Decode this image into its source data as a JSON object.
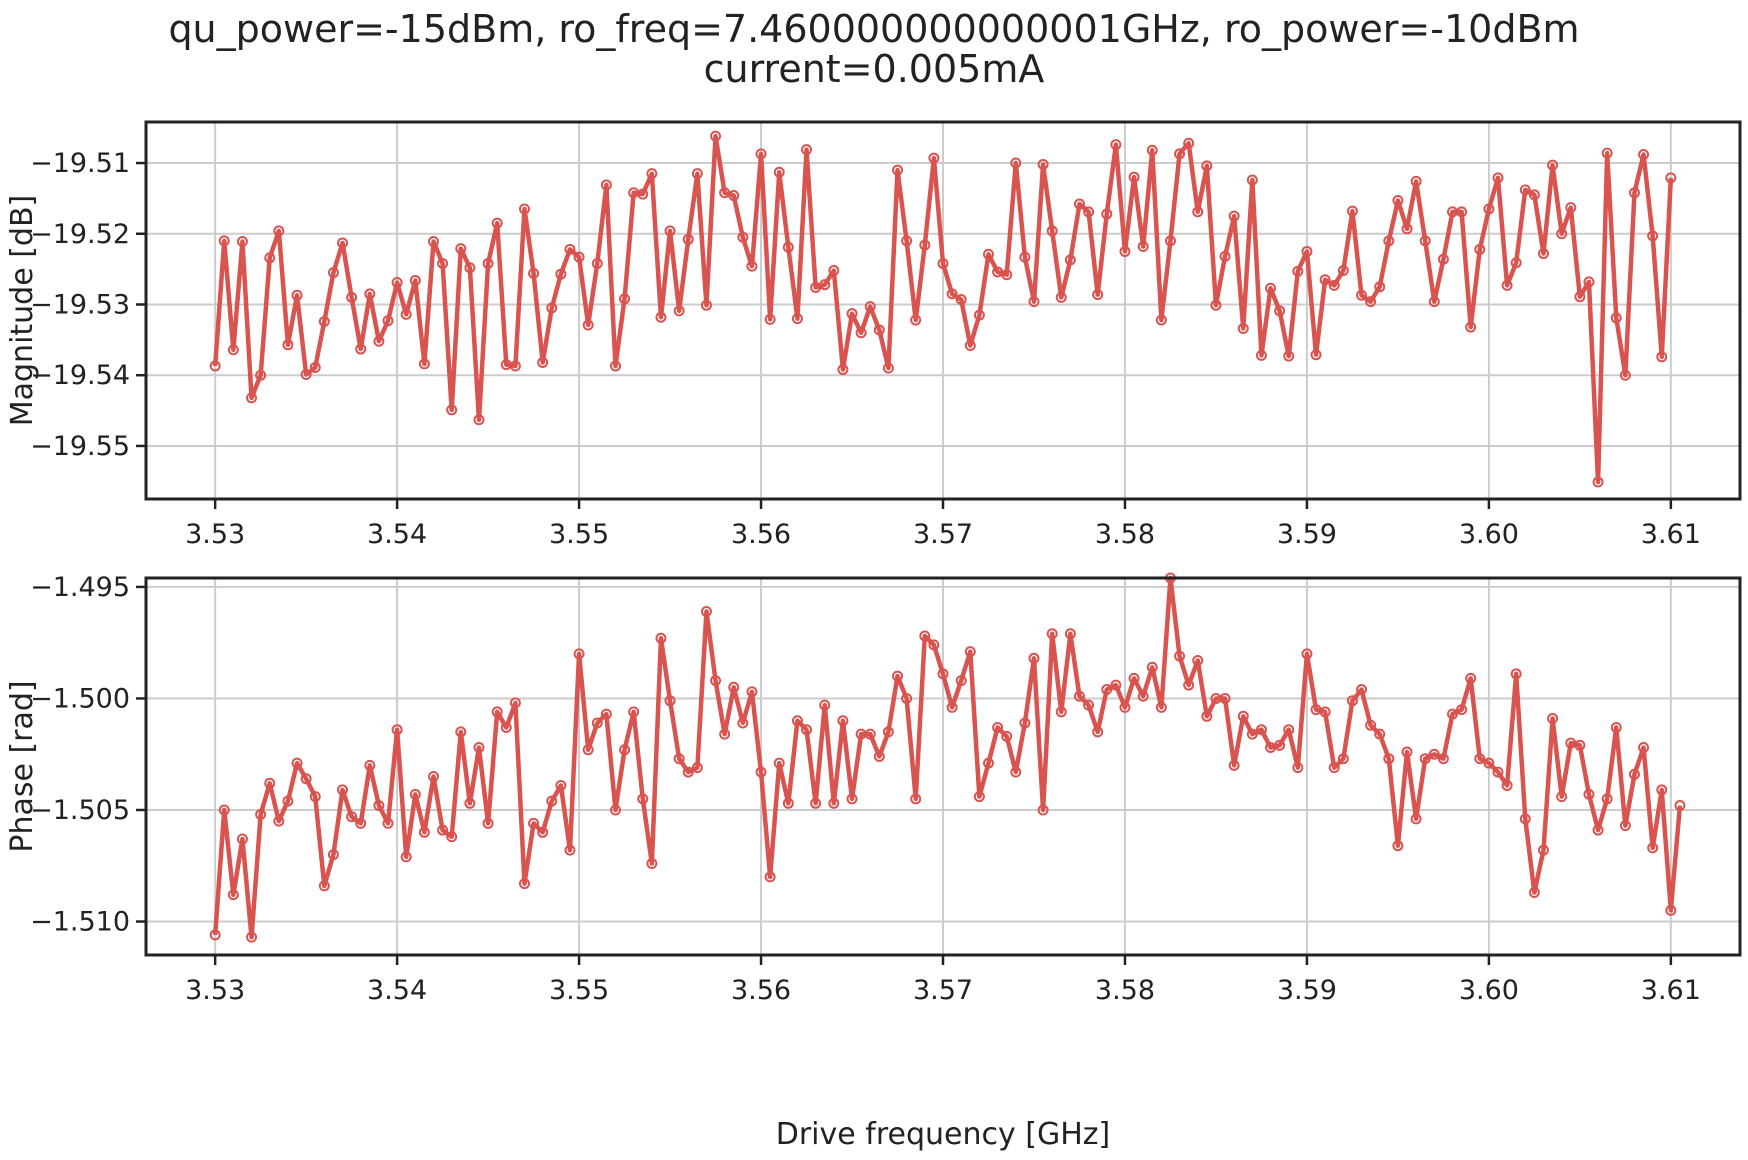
{
  "figure": {
    "title_line1": "qu_power=-15dBm, ro_freq=7.460000000000001GHz, ro_power=-10dBm",
    "title_line2": "current=0.005mA",
    "series_color": "#d9534f"
  },
  "chart_data": [
    {
      "type": "line",
      "ylabel": "Magnitude [dB]",
      "xlabel": "",
      "xlim": [
        3.5262,
        3.6138
      ],
      "ylim": [
        -19.5575,
        -19.5042
      ],
      "xticks": [
        3.53,
        3.54,
        3.55,
        3.56,
        3.57,
        3.58,
        3.59,
        3.6,
        3.61
      ],
      "xtick_labels": [
        "3.53",
        "3.54",
        "3.55",
        "3.56",
        "3.57",
        "3.58",
        "3.59",
        "3.60",
        "3.61"
      ],
      "yticks": [
        -19.55,
        -19.54,
        -19.53,
        -19.52,
        -19.51
      ],
      "ytick_labels": [
        "−19.55",
        "−19.54",
        "−19.53",
        "−19.52",
        "−19.51"
      ],
      "grid": true,
      "marker": "open-circle",
      "x_start": 3.53,
      "x_step": 0.0005,
      "values": [
        -19.5387,
        -19.521,
        -19.5364,
        -19.5211,
        -19.5432,
        -19.54,
        -19.5234,
        -19.5196,
        -19.5357,
        -19.5287,
        -19.5399,
        -19.5389,
        -19.5324,
        -19.5255,
        -19.5213,
        -19.529,
        -19.5363,
        -19.5285,
        -19.5352,
        -19.5323,
        -19.5269,
        -19.5314,
        -19.5266,
        -19.5384,
        -19.5211,
        -19.5242,
        -19.5449,
        -19.5221,
        -19.5248,
        -19.5463,
        -19.5242,
        -19.5185,
        -19.5385,
        -19.5387,
        -19.5165,
        -19.5256,
        -19.5382,
        -19.5305,
        -19.5257,
        -19.5222,
        -19.5233,
        -19.5329,
        -19.5242,
        -19.5131,
        -19.5387,
        -19.5292,
        -19.5142,
        -19.5144,
        -19.5115,
        -19.5318,
        -19.5196,
        -19.5309,
        -19.5208,
        -19.5115,
        -19.5301,
        -19.5062,
        -19.5142,
        -19.5146,
        -19.5205,
        -19.5246,
        -19.5087,
        -19.5321,
        -19.5113,
        -19.5219,
        -19.532,
        -19.5081,
        -19.5276,
        -19.5272,
        -19.5252,
        -19.5392,
        -19.5313,
        -19.534,
        -19.5303,
        -19.5336,
        -19.539,
        -19.511,
        -19.521,
        -19.5322,
        -19.5216,
        -19.5093,
        -19.5242,
        -19.5285,
        -19.5293,
        -19.5358,
        -19.5315,
        -19.5229,
        -19.5254,
        -19.5258,
        -19.51,
        -19.5233,
        -19.5296,
        -19.5102,
        -19.5196,
        -19.529,
        -19.5237,
        -19.5158,
        -19.5169,
        -19.5286,
        -19.5172,
        -19.5074,
        -19.5225,
        -19.512,
        -19.5218,
        -19.5082,
        -19.5322,
        -19.521,
        -19.5087,
        -19.5072,
        -19.5169,
        -19.5104,
        -19.5301,
        -19.5232,
        -19.5175,
        -19.5334,
        -19.5124,
        -19.5372,
        -19.5277,
        -19.5309,
        -19.5373,
        -19.5253,
        -19.5225,
        -19.5371,
        -19.5265,
        -19.5273,
        -19.5252,
        -19.5168,
        -19.5287,
        -19.5296,
        -19.5275,
        -19.521,
        -19.5153,
        -19.5193,
        -19.5126,
        -19.521,
        -19.5296,
        -19.5236,
        -19.5169,
        -19.5169,
        -19.5332,
        -19.5222,
        -19.5165,
        -19.5121,
        -19.5273,
        -19.5241,
        -19.5138,
        -19.5145,
        -19.5228,
        -19.5103,
        -19.52,
        -19.5163,
        -19.5289,
        -19.5268,
        -19.5551,
        -19.5086,
        -19.5319,
        -19.54,
        -19.5142,
        -19.5088,
        -19.5203,
        -19.5374,
        -19.5121
      ]
    },
    {
      "type": "line",
      "ylabel": "Phase [rad]",
      "xlabel": "Drive frequency [GHz]",
      "xlim": [
        3.5262,
        3.6138
      ],
      "ylim": [
        -1.5115,
        -1.4946
      ],
      "xticks": [
        3.53,
        3.54,
        3.55,
        3.56,
        3.57,
        3.58,
        3.59,
        3.6,
        3.61
      ],
      "xtick_labels": [
        "3.53",
        "3.54",
        "3.55",
        "3.56",
        "3.57",
        "3.58",
        "3.59",
        "3.60",
        "3.61"
      ],
      "yticks": [
        -1.51,
        -1.505,
        -1.5,
        -1.495
      ],
      "ytick_labels": [
        "−1.510",
        "−1.505",
        "−1.500",
        "−1.495"
      ],
      "grid": true,
      "marker": "open-circle",
      "x_start": 3.53,
      "x_step": 0.0005,
      "values": [
        -1.5106,
        -1.505,
        -1.5088,
        -1.5063,
        -1.5107,
        -1.5052,
        -1.5038,
        -1.5055,
        -1.5046,
        -1.5029,
        -1.5036,
        -1.5044,
        -1.5084,
        -1.507,
        -1.5041,
        -1.5053,
        -1.5056,
        -1.503,
        -1.5048,
        -1.5056,
        -1.5014,
        -1.5071,
        -1.5043,
        -1.506,
        -1.5035,
        -1.5059,
        -1.5062,
        -1.5015,
        -1.5047,
        -1.5022,
        -1.5056,
        -1.5006,
        -1.5013,
        -1.5002,
        -1.5083,
        -1.5056,
        -1.506,
        -1.5046,
        -1.5039,
        -1.5068,
        -1.498,
        -1.5023,
        -1.5011,
        -1.5007,
        -1.505,
        -1.5023,
        -1.5006,
        -1.5045,
        -1.5074,
        -1.4973,
        -1.5001,
        -1.5027,
        -1.5033,
        -1.5031,
        -1.4961,
        -1.4992,
        -1.5016,
        -1.4995,
        -1.5011,
        -1.4997,
        -1.5033,
        -1.508,
        -1.5029,
        -1.5047,
        -1.501,
        -1.5014,
        -1.5047,
        -1.5003,
        -1.5047,
        -1.501,
        -1.5045,
        -1.5016,
        -1.5016,
        -1.5026,
        -1.5015,
        -1.499,
        -1.5,
        -1.5045,
        -1.4972,
        -1.4976,
        -1.4989,
        -1.5004,
        -1.4992,
        -1.4979,
        -1.5044,
        -1.5029,
        -1.5013,
        -1.5017,
        -1.5033,
        -1.5011,
        -1.4982,
        -1.505,
        -1.4971,
        -1.5006,
        -1.4971,
        -1.4999,
        -1.5003,
        -1.5015,
        -1.4996,
        -1.4994,
        -1.5004,
        -1.4991,
        -1.4999,
        -1.4986,
        -1.5004,
        -1.4946,
        -1.4981,
        -1.4994,
        -1.4983,
        -1.5008,
        -1.5,
        -1.5,
        -1.503,
        -1.5008,
        -1.5016,
        -1.5014,
        -1.5022,
        -1.5021,
        -1.5014,
        -1.5031,
        -1.498,
        -1.5005,
        -1.5006,
        -1.5031,
        -1.5027,
        -1.5001,
        -1.4996,
        -1.5012,
        -1.5016,
        -1.5027,
        -1.5066,
        -1.5024,
        -1.5054,
        -1.5027,
        -1.5025,
        -1.5027,
        -1.5007,
        -1.5005,
        -1.4991,
        -1.5027,
        -1.5029,
        -1.5033,
        -1.5039,
        -1.4989,
        -1.5054,
        -1.5087,
        -1.5068,
        -1.5009,
        -1.5044,
        -1.502,
        -1.5021,
        -1.5043,
        -1.5059,
        -1.5045,
        -1.5013,
        -1.5057,
        -1.5034,
        -1.5022,
        -1.5067,
        -1.5041,
        -1.5095,
        -1.5048
      ]
    }
  ]
}
